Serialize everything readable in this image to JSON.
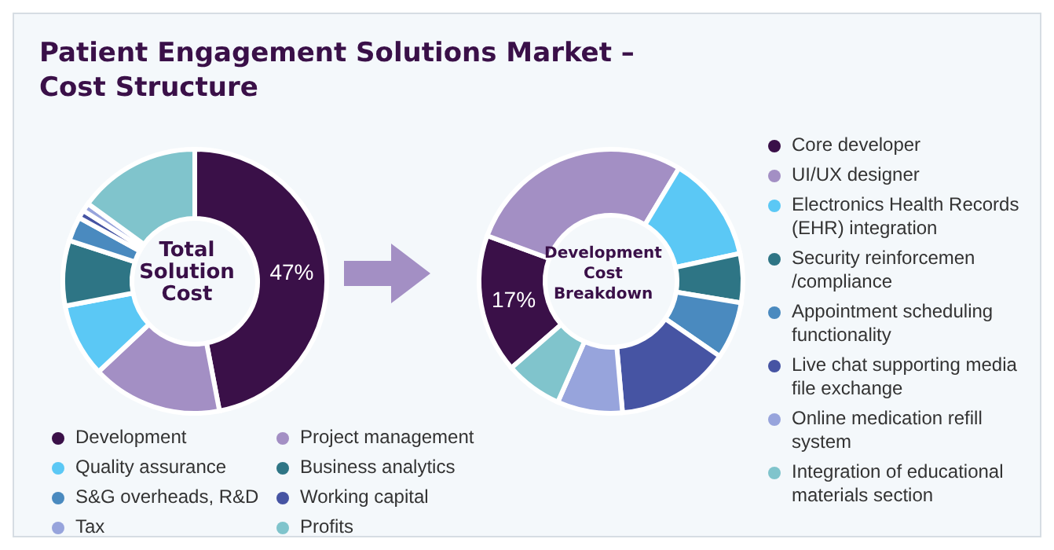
{
  "chart_data": [
    {
      "type": "donut",
      "title": "Patient Engagement Solutions Market – Cost Structure",
      "annotations": [
        "Total Solution Cost"
      ],
      "categories": [
        "Development",
        "Project management",
        "Quality assurance",
        "Business analytics",
        "S&G overheads, R&D",
        "Working capital",
        "Tax",
        "Profits"
      ],
      "values": [
        47,
        16,
        9,
        8,
        3,
        1,
        1,
        15
      ],
      "colors": [
        "#3a1048",
        "#a38fc4",
        "#5bc8f5",
        "#2e7585",
        "#4a8abf",
        "#4654a3",
        "#97a4dc",
        "#80c4cc"
      ],
      "value_labels": [
        "47%",
        null,
        null,
        null,
        null,
        null,
        null,
        null
      ],
      "legend": "bottom"
    },
    {
      "type": "donut",
      "annotations": [
        "Development Cost Breakdown"
      ],
      "categories": [
        "Core developer",
        "UI/UX designer",
        "Electronics Health Records (EHR) integration",
        "Security reinforcemen /compliance",
        "Appointment scheduling functionality",
        "Live chat supporting media file exchange",
        "Online medication refill system",
        "Integration of educational materials section"
      ],
      "values": [
        17,
        28,
        13,
        6,
        7,
        14,
        8,
        7
      ],
      "colors": [
        "#3a1048",
        "#a38fc4",
        "#5bc8f5",
        "#2e7585",
        "#4a8abf",
        "#4654a3",
        "#97a4dc",
        "#80c4cc"
      ],
      "value_labels": [
        "17%",
        null,
        null,
        null,
        null,
        null,
        null,
        null
      ],
      "legend": "right"
    }
  ]
}
